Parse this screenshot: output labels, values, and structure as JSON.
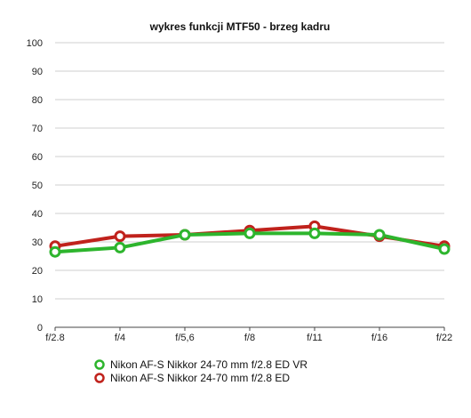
{
  "chart_data": {
    "type": "line",
    "title": "wykres funkcji MTF50 - brzeg kadru",
    "xlabel": "",
    "ylabel": "",
    "categories": [
      "f/2.8",
      "f/4",
      "f/5,6",
      "f/8",
      "f/11",
      "f/16",
      "f/22"
    ],
    "ylim": [
      0,
      100
    ],
    "yticks": [
      0,
      10,
      20,
      30,
      40,
      50,
      60,
      70,
      80,
      90,
      100
    ],
    "grid": true,
    "legend_position": "bottom",
    "series": [
      {
        "name": "Nikon AF-S Nikkor 24-70 mm f/2.8 ED VR",
        "color": "#2db52d",
        "values": [
          26.5,
          28,
          32.5,
          33,
          33,
          32.5,
          27.5
        ]
      },
      {
        "name": "Nikon AF-S Nikkor 24-70 mm f/2.8 ED",
        "color": "#c0221c",
        "values": [
          28.5,
          32,
          32.5,
          34,
          35.5,
          32,
          28.5
        ]
      }
    ]
  }
}
